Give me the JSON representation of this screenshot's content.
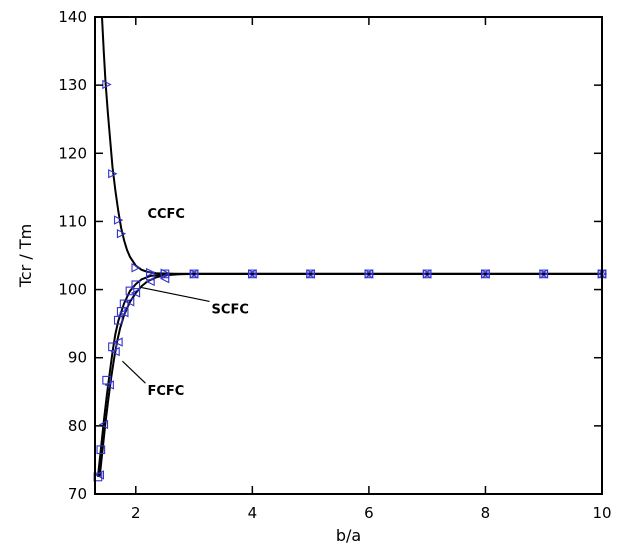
{
  "chart_data": {
    "type": "line",
    "xlabel": "b/a",
    "ylabel": "Tcr / Tm",
    "xlim": [
      1.3,
      10
    ],
    "ylim": [
      70,
      140
    ],
    "xticks": [
      2,
      4,
      6,
      8,
      10
    ],
    "yticks": [
      70,
      80,
      90,
      100,
      110,
      120,
      130,
      140
    ],
    "grid": false,
    "colors": {
      "curve": "#000000",
      "marker": "#3333cc",
      "axis": "#000000"
    },
    "series": [
      {
        "key": "ccfc",
        "line_x": [
          1.42,
          1.45,
          1.48,
          1.52,
          1.56,
          1.6,
          1.65,
          1.7,
          1.75,
          1.8,
          1.85,
          1.9,
          2.0,
          2.1,
          2.2,
          2.35,
          2.5,
          2.75,
          3,
          4,
          5,
          6,
          7,
          8,
          9,
          10
        ],
        "line_y": [
          140,
          135,
          130.5,
          126,
          122,
          118,
          114.5,
          111.5,
          109,
          107.2,
          105.8,
          104.8,
          103.5,
          102.9,
          102.6,
          102.4,
          102.35,
          102.3,
          102.3,
          102.3,
          102.3,
          102.3,
          102.3,
          102.3,
          102.3,
          102.3
        ],
        "marker": "triangle-right",
        "points_x": [
          1.5,
          1.6,
          1.7,
          1.75,
          2.0,
          2.25,
          2.5,
          3,
          4,
          5,
          6,
          7,
          8,
          9,
          10
        ],
        "points_y": [
          130.1,
          117,
          110.2,
          108.2,
          103.2,
          102.5,
          102.4,
          102.3,
          102.3,
          102.3,
          102.3,
          102.3,
          102.3,
          102.3,
          102.3
        ]
      },
      {
        "key": "scfc",
        "line_x": [
          1.35,
          1.4,
          1.45,
          1.5,
          1.55,
          1.6,
          1.65,
          1.7,
          1.8,
          1.9,
          2.0,
          2.1,
          2.25,
          2.5,
          2.75,
          3,
          4,
          5,
          6,
          7,
          8,
          9,
          10
        ],
        "line_y": [
          72.5,
          76.5,
          80.6,
          84.3,
          87.6,
          90.8,
          93.5,
          95.4,
          98.0,
          99.8,
          100.8,
          101.5,
          102.0,
          102.25,
          102.3,
          102.3,
          102.3,
          102.3,
          102.3,
          102.3,
          102.3,
          102.3,
          102.3
        ],
        "marker": "square",
        "points_x": [
          1.35,
          1.4,
          1.5,
          1.6,
          1.7,
          1.75,
          1.8,
          1.9,
          2.0,
          2.25,
          2.5,
          3,
          4,
          5,
          6,
          7,
          8,
          9,
          10
        ],
        "points_y": [
          72.5,
          76.5,
          86.7,
          91.6,
          95.5,
          96.8,
          97.9,
          99.8,
          100.7,
          102.0,
          102.3,
          102.3,
          102.3,
          102.3,
          102.3,
          102.3,
          102.3,
          102.3,
          102.3
        ]
      },
      {
        "key": "fcfc",
        "line_x": [
          1.38,
          1.43,
          1.48,
          1.53,
          1.58,
          1.63,
          1.68,
          1.73,
          1.8,
          1.9,
          2.0,
          2.1,
          2.2,
          2.35,
          2.5,
          2.75,
          3,
          4,
          5,
          6,
          7,
          8,
          9,
          10
        ],
        "line_y": [
          72.5,
          76.5,
          80.5,
          84.0,
          87.2,
          90.0,
          92.4,
          94.3,
          96.3,
          98.2,
          99.5,
          100.5,
          101.2,
          101.8,
          102.1,
          102.25,
          102.3,
          102.3,
          102.3,
          102.3,
          102.3,
          102.3,
          102.3,
          102.3
        ],
        "marker": "triangle-left",
        "points_x": [
          1.38,
          1.45,
          1.55,
          1.65,
          1.7,
          1.8,
          1.9,
          2.0,
          2.25,
          2.5,
          3,
          4,
          5,
          6,
          7,
          8,
          9,
          10
        ],
        "points_y": [
          72.8,
          80.2,
          86.0,
          90.9,
          92.3,
          96.6,
          98.2,
          99.5,
          101.2,
          101.6,
          102.3,
          102.3,
          102.3,
          102.3,
          102.3,
          102.3,
          102.3,
          102.3
        ]
      }
    ],
    "annotations": [
      {
        "text": "CCFC",
        "tx": 2.2,
        "ty": 110.5,
        "ax": null,
        "ay": null
      },
      {
        "text": "SCFC",
        "tx": 3.3,
        "ty": 96.5,
        "ax": 2.1,
        "ay": 100.3
      },
      {
        "text": "FCFC",
        "tx": 2.2,
        "ty": 84.5,
        "ax": 1.77,
        "ay": 89.5
      }
    ]
  }
}
